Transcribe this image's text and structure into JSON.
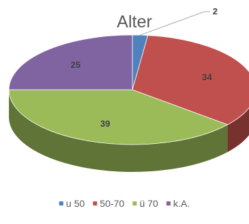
{
  "chart_data": {
    "type": "pie",
    "title": "Alter",
    "categories": [
      "u 50",
      "50-70",
      "ü 70",
      "k.A."
    ],
    "values": [
      2,
      34,
      39,
      25
    ],
    "colors": [
      "#4F81BD",
      "#C0504D",
      "#9BBB59",
      "#8064A2"
    ],
    "legend_position": "bottom",
    "style": "3d"
  }
}
